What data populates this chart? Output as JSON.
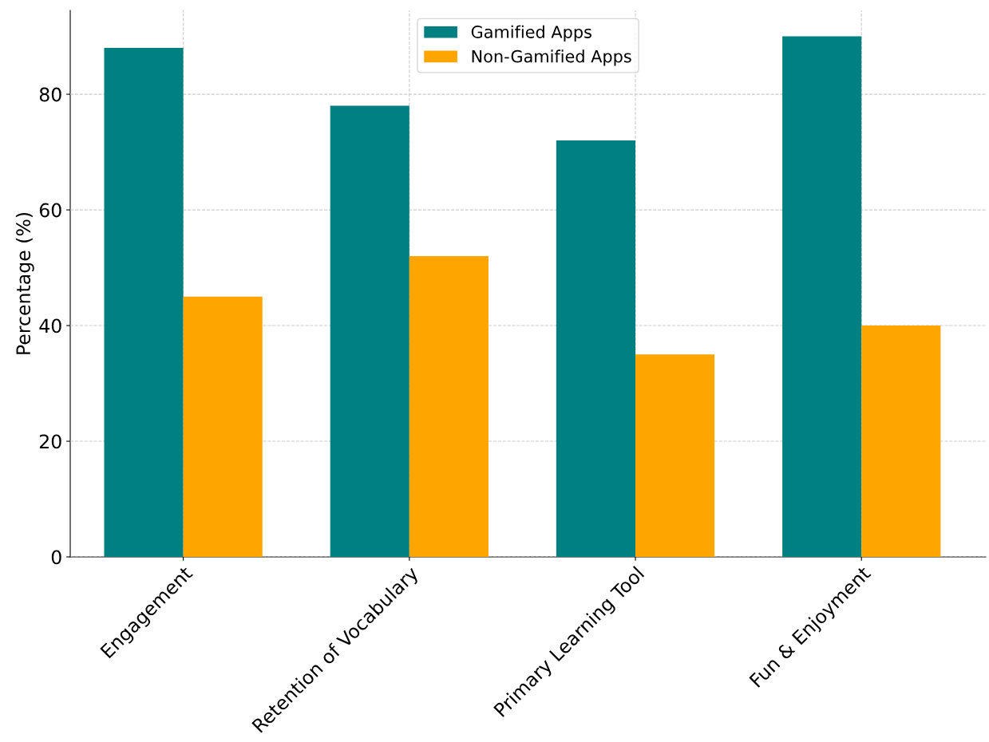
{
  "chart_data": {
    "type": "bar",
    "ylabel": "Percentage (%)",
    "categories": [
      "Engagement",
      "Retention of Vocabulary",
      "Primary Learning Tool",
      "Fun & Enjoyment"
    ],
    "series": [
      {
        "name": "Gamified Apps",
        "color": "#008080",
        "values": [
          88,
          78,
          72,
          90
        ]
      },
      {
        "name": "Non-Gamified Apps",
        "color": "#ffa500",
        "values": [
          45,
          52,
          35,
          40
        ]
      }
    ],
    "ylim": [
      0,
      94.5
    ],
    "yticks": [
      0,
      20,
      40,
      60,
      80
    ],
    "grid": true,
    "legend": "top"
  }
}
